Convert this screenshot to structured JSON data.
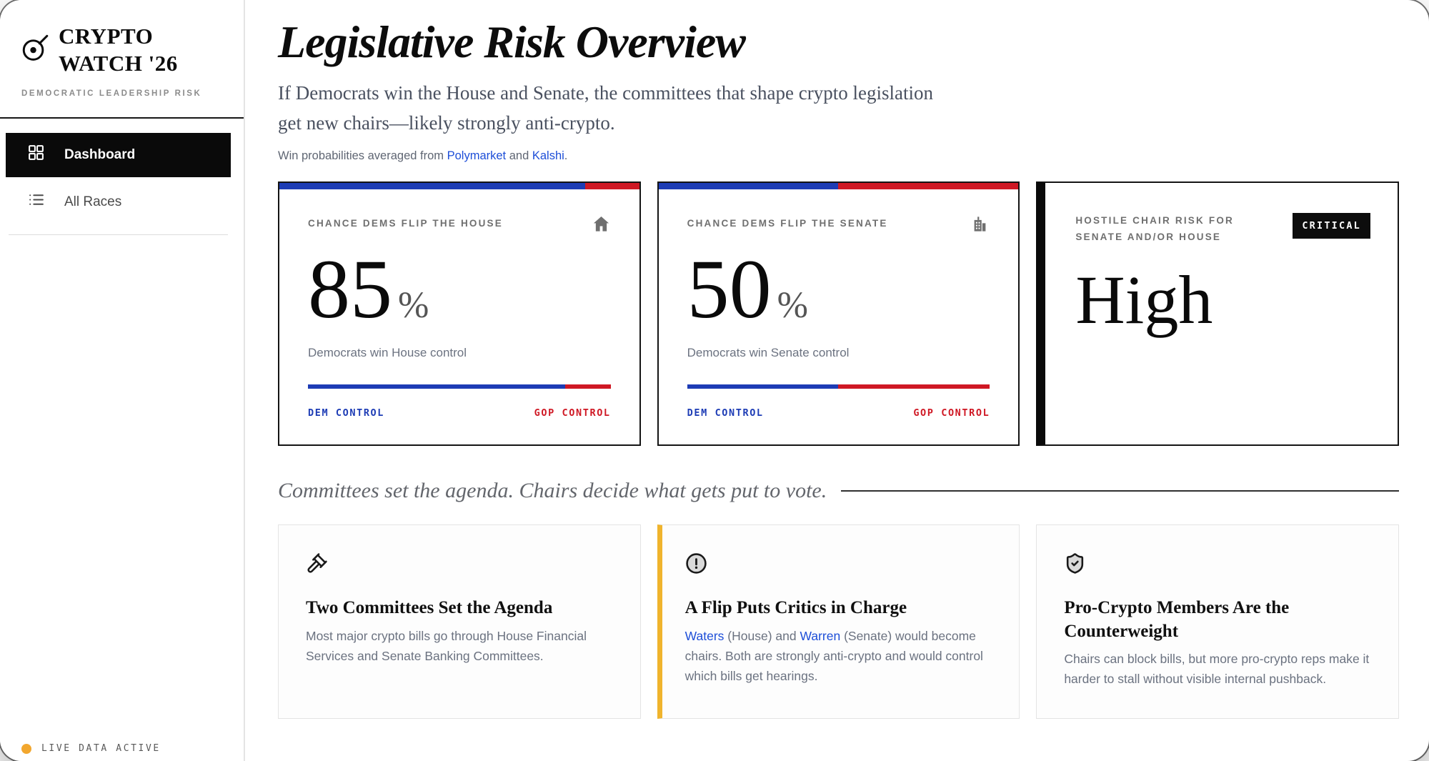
{
  "colors": {
    "dem_blue": "#1d3cb5",
    "gop_red": "#cf1824",
    "accent_amber": "#f0b42d",
    "link_blue": "#1d4ed8",
    "badge_bg": "#0d0d0d",
    "live_dot": "#f2a72e"
  },
  "sidebar": {
    "brand_line1": "CRYPTO",
    "brand_line2": "WATCH '26",
    "tagline": "DEMOCRATIC LEADERSHIP RISK",
    "items": [
      {
        "label": "Dashboard",
        "icon": "grid-icon",
        "active": true
      },
      {
        "label": "All Races",
        "icon": "list-icon",
        "active": false
      }
    ],
    "status_label": "LIVE DATA ACTIVE"
  },
  "header": {
    "title": "Legislative Risk Overview",
    "subtitle": "If Democrats win the House and Senate, the committees that shape crypto legislation get new chairs—likely strongly anti-crypto.",
    "source_segments": [
      {
        "text": "Win probabilities averaged from "
      },
      {
        "text": "Polymarket",
        "link": true
      },
      {
        "text": " and "
      },
      {
        "text": "Kalshi",
        "link": true
      },
      {
        "text": "."
      }
    ]
  },
  "stat_cards": [
    {
      "label": "CHANCE DEMS FLIP THE HOUSE",
      "icon": "house-icon",
      "value": "85",
      "unit": "%",
      "caption": "Democrats win House control",
      "dem_pct": 85,
      "gop_pct": 15,
      "left_label": "DEM CONTROL",
      "right_label": "GOP CONTROL"
    },
    {
      "label": "CHANCE DEMS FLIP THE SENATE",
      "icon": "bank-icon",
      "value": "50",
      "unit": "%",
      "caption": "Democrats win Senate control",
      "dem_pct": 50,
      "gop_pct": 50,
      "left_label": "DEM CONTROL",
      "right_label": "GOP CONTROL"
    }
  ],
  "risk_card": {
    "label": "HOSTILE CHAIR RISK FOR SENATE AND/OR HOUSE",
    "badge": "CRITICAL",
    "value": "High"
  },
  "section": {
    "heading": "Committees set the agenda. Chairs decide what gets put to vote."
  },
  "info_cards": [
    {
      "icon": "gavel-icon",
      "title": "Two Committees Set the Agenda",
      "body": "Most major crypto bills go through House Financial Services and Senate Banking Committees."
    },
    {
      "icon": "alert-circle-icon",
      "title": "A Flip Puts Critics in Charge",
      "body_segments": [
        {
          "text": "Waters",
          "link": true
        },
        {
          "text": " (House) and "
        },
        {
          "text": "Warren",
          "link": true
        },
        {
          "text": " (Senate) would become chairs. Both are strongly anti-crypto and would control which bills get hearings."
        }
      ]
    },
    {
      "icon": "shield-check-icon",
      "title": "Pro-Crypto Members Are the Counterweight",
      "body": "Chairs can block bills, but more pro-crypto reps make it harder to stall without visible internal pushback."
    }
  ]
}
